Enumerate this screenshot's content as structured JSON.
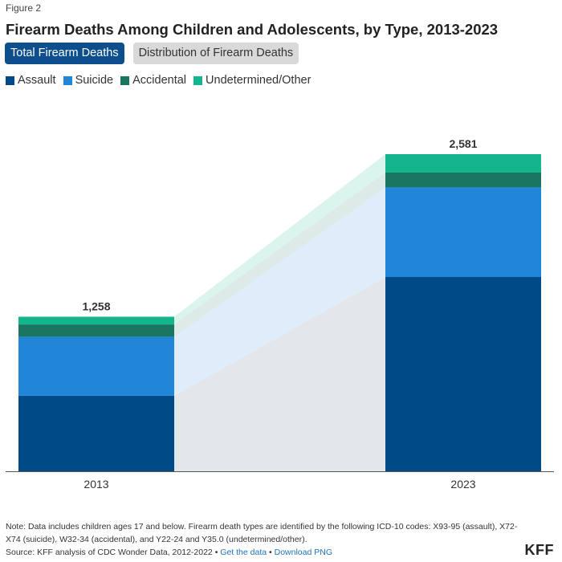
{
  "figure_label": "Figure 2",
  "title": "Firearm Deaths Among Children and Adolescents, by Type, 2013-2023",
  "tabs": [
    {
      "label": "Total Firearm Deaths",
      "active": true
    },
    {
      "label": "Distribution of Firearm Deaths",
      "active": false
    }
  ],
  "colors": {
    "assault": "#004a87",
    "suicide": "#1f86d8",
    "accidental": "#1a7560",
    "undetermined": "#13b58c",
    "tab_active": "#0d4f8c",
    "tab_inactive": "#d9d9d9",
    "link": "#1f72b8"
  },
  "chart_data": {
    "type": "bar",
    "subtype": "stacked",
    "categories": [
      "2013",
      "2023"
    ],
    "series": [
      {
        "name": "Assault",
        "values": [
          615,
          1581
        ],
        "color": "#004a87"
      },
      {
        "name": "Suicide",
        "values": [
          480,
          730
        ],
        "color": "#1f86d8"
      },
      {
        "name": "Accidental",
        "values": [
          100,
          120
        ],
        "color": "#1a7560"
      },
      {
        "name": "Undetermined/Other",
        "values": [
          63,
          150
        ],
        "color": "#13b58c"
      }
    ],
    "totals": [
      1258,
      2581
    ],
    "total_labels": [
      "1,258",
      "2,581"
    ],
    "ylim": [
      0,
      2581
    ],
    "legend_position": "top-left",
    "connectors": true
  },
  "note": "Note:  Data includes children ages 17 and below. Firearm death types are identified by the following ICD-10 codes: X93-95 (assault), X72-X74 (suicide), W32-34 (accidental), and Y22-24 and Y35.0 (undetermined/other).",
  "source": {
    "text": "Source: KFF analysis of CDC Wonder Data, 2012-2022",
    "separator": "•",
    "get_data": "Get the data",
    "download": "Download PNG"
  },
  "logo": "KFF"
}
